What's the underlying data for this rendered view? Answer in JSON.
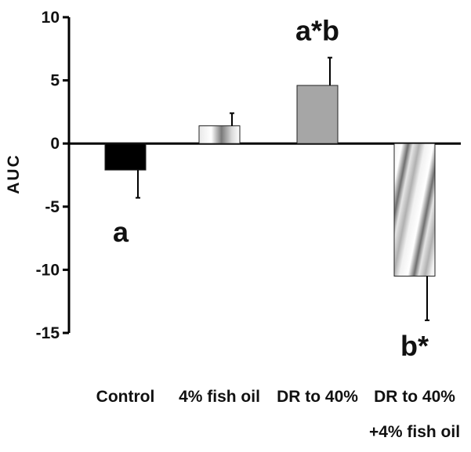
{
  "chart_data": {
    "type": "bar",
    "title": "",
    "xlabel": "",
    "ylabel": "AUC",
    "ylim": [
      -15,
      10
    ],
    "yticks": [
      10,
      5,
      0,
      -5,
      -10,
      -15
    ],
    "grid": false,
    "categories": [
      [
        "Control"
      ],
      [
        "4% fish oil"
      ],
      [
        "DR to 40%"
      ],
      [
        "DR to 40%",
        "+4% fish oil"
      ]
    ],
    "values": [
      -2.1,
      1.4,
      4.6,
      -10.5
    ],
    "error_bars": [
      2.2,
      1.0,
      2.2,
      3.5
    ],
    "annotations": [
      "a",
      "",
      "a*b",
      "b*"
    ],
    "colors": {
      "control": "#000000",
      "fish_oil": "#b5b5b5",
      "dr40": "#a6a6a6",
      "dr40_fish_oil": "#8c8c8c"
    }
  }
}
